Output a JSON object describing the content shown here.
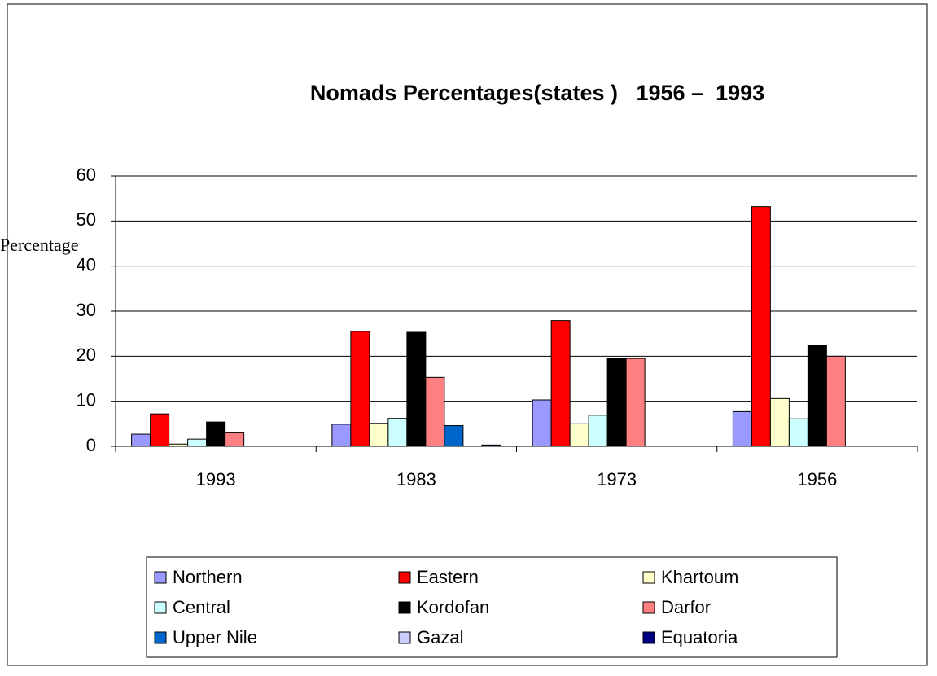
{
  "chart_data": {
    "type": "bar",
    "title": "Nomads Percentages(states )   1956 –  1993",
    "y_label": "Percentage",
    "categories": [
      "1993",
      "1983",
      "1973",
      "1956"
    ],
    "series": [
      {
        "name": "Northern",
        "color": "#9999ff",
        "values": [
          2.7,
          4.9,
          10.3,
          7.7
        ]
      },
      {
        "name": "Eastern",
        "color": "#ff0000",
        "values": [
          7.2,
          25.5,
          27.9,
          53.2
        ]
      },
      {
        "name": "Khartoum",
        "color": "#ffffcc",
        "values": [
          0.5,
          5.1,
          5.0,
          10.6
        ]
      },
      {
        "name": "Central",
        "color": "#ccffff",
        "values": [
          1.6,
          6.2,
          6.9,
          6.1
        ]
      },
      {
        "name": "Kordofan",
        "color": "#000000",
        "values": [
          5.4,
          25.3,
          19.5,
          22.5
        ]
      },
      {
        "name": "Darfor",
        "color": "#ff8080",
        "values": [
          3.0,
          15.3,
          19.5,
          20.0
        ]
      },
      {
        "name": "Upper Nile",
        "color": "#0066cc",
        "values": [
          0,
          4.6,
          0,
          0
        ]
      },
      {
        "name": "Gazal",
        "color": "#ccccff",
        "values": [
          0,
          0,
          0,
          0
        ]
      },
      {
        "name": "Equatoria",
        "color": "#000080",
        "values": [
          0,
          0.3,
          0,
          0
        ]
      }
    ],
    "ylim": [
      0,
      60
    ],
    "yticks": [
      0,
      10,
      20,
      30,
      40,
      50,
      60
    ],
    "grid": true
  }
}
